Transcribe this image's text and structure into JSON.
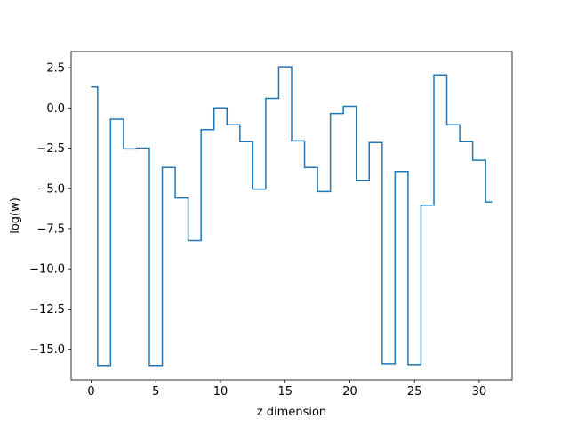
{
  "chart_data": {
    "type": "line",
    "drawstyle": "steps-mid",
    "title": "",
    "xlabel": "z dimension",
    "ylabel": "log(w)",
    "xlim": [
      -1.55,
      32.55
    ],
    "ylim": [
      -16.9,
      3.5
    ],
    "xticks": [
      0,
      5,
      10,
      15,
      20,
      25,
      30
    ],
    "xtick_labels": [
      "0",
      "5",
      "10",
      "15",
      "20",
      "25",
      "30"
    ],
    "yticks": [
      2.5,
      0.0,
      -2.5,
      -5.0,
      -7.5,
      -10.0,
      -12.5,
      -15.0
    ],
    "ytick_labels": [
      "2.5",
      "0.0",
      "−2.5",
      "−5.0",
      "−7.5",
      "−10.0",
      "−12.5",
      "−15.0"
    ],
    "grid": false,
    "legend": "none",
    "series": [
      {
        "color": "#1f77b4",
        "x": [
          0,
          1,
          2,
          3,
          4,
          5,
          6,
          7,
          8,
          9,
          10,
          11,
          12,
          13,
          14,
          15,
          16,
          17,
          18,
          19,
          20,
          21,
          22,
          23,
          24,
          25,
          26,
          27,
          28,
          29,
          30,
          31
        ],
        "values": [
          1.3,
          -16.0,
          -0.7,
          -2.55,
          -2.5,
          -16.0,
          -3.7,
          -5.6,
          -8.25,
          -1.35,
          0.0,
          -1.05,
          -2.1,
          -5.05,
          0.6,
          2.55,
          -2.05,
          -3.7,
          -5.2,
          -0.35,
          0.1,
          -4.5,
          -2.15,
          -15.9,
          -3.95,
          -15.95,
          -6.05,
          2.05,
          -1.05,
          -2.1,
          -3.25,
          -5.85
        ]
      }
    ]
  }
}
